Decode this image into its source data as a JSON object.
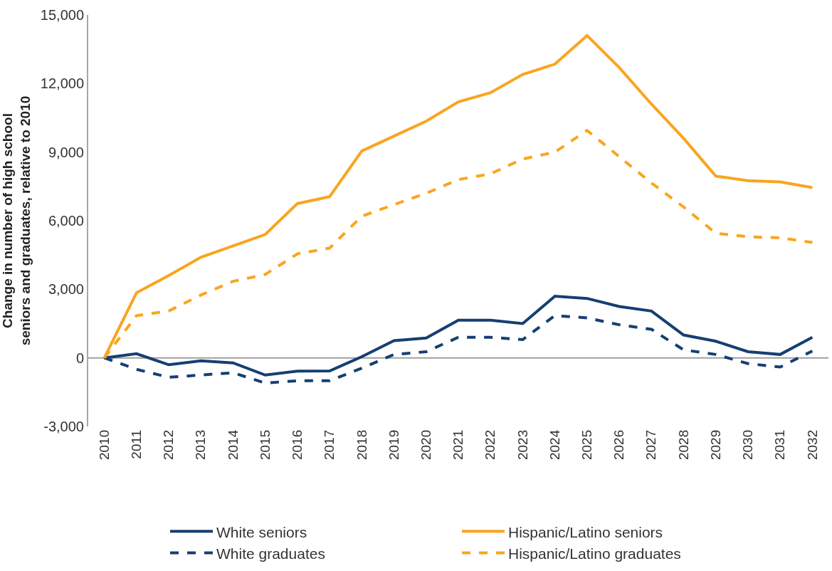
{
  "chart_data": {
    "type": "line",
    "ylabel": "Change in number of high school seniors and graduates, relative to 2010",
    "categories": [
      "2010",
      "2011",
      "2012",
      "2013",
      "2014",
      "2015",
      "2016",
      "2017",
      "2018",
      "2019",
      "2020",
      "2021",
      "2022",
      "2023",
      "2024",
      "2025",
      "2026",
      "2027",
      "2028",
      "2029",
      "2030",
      "2031",
      "2032"
    ],
    "series": [
      {
        "name": "White seniors",
        "color": "#143f73",
        "line_style": "solid",
        "values": [
          0,
          180,
          -300,
          -130,
          -220,
          -750,
          -580,
          -570,
          50,
          750,
          870,
          1650,
          1650,
          1500,
          2700,
          2600,
          2250,
          2050,
          1000,
          730,
          270,
          150,
          900
        ]
      },
      {
        "name": "Hispanic/Latino seniors",
        "color": "#f9a51f",
        "line_style": "solid",
        "values": [
          0,
          2850,
          3600,
          4400,
          4900,
          5400,
          6750,
          7050,
          9050,
          9700,
          10350,
          11200,
          11600,
          12400,
          12850,
          14100,
          12700,
          11100,
          9600,
          7950,
          7750,
          7700,
          7450
        ]
      },
      {
        "name": "White graduates",
        "color": "#143f73",
        "line_style": "dashed",
        "values": [
          0,
          -500,
          -850,
          -750,
          -650,
          -1100,
          -1000,
          -1000,
          -450,
          150,
          270,
          900,
          900,
          800,
          1850,
          1750,
          1450,
          1250,
          350,
          150,
          -250,
          -400,
          300
        ]
      },
      {
        "name": "Hispanic/Latino graduates",
        "color": "#f9a51f",
        "line_style": "dashed",
        "values": [
          0,
          1850,
          2050,
          2750,
          3350,
          3650,
          4550,
          4800,
          6200,
          6700,
          7200,
          7800,
          8050,
          8700,
          9000,
          9950,
          8800,
          7650,
          6600,
          5450,
          5300,
          5250,
          5050
        ]
      }
    ],
    "ylim": [
      -3000,
      15000
    ],
    "yticks": [
      {
        "value": -3000,
        "label": "-3,000"
      },
      {
        "value": 0,
        "label": "0"
      },
      {
        "value": 3000,
        "label": "3,000"
      },
      {
        "value": 6000,
        "label": "6,000"
      },
      {
        "value": 9000,
        "label": "9,000"
      },
      {
        "value": 12000,
        "label": "12,000"
      },
      {
        "value": 15000,
        "label": "15,000"
      }
    ],
    "grid": false,
    "ref_lines": [
      {
        "axis": "y",
        "value": 0,
        "color": "#a0a0a0"
      }
    ],
    "legend": "bottom",
    "marker": "none"
  }
}
